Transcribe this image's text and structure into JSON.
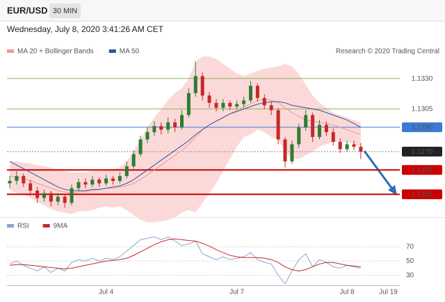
{
  "header": {
    "symbol": "EUR/USD",
    "interval": "30 MIN",
    "timestamp": "Wednesday, July 8, 2020 3:41:26 AM CET"
  },
  "chart_data": [
    {
      "type": "candlestick",
      "source": "Research © 2020 Trading Central",
      "categories": [
        null,
        null,
        null,
        null,
        null,
        null,
        null,
        null,
        null,
        null,
        null,
        null,
        null,
        null,
        "Jul 4",
        null,
        null,
        null,
        null,
        null,
        null,
        null,
        null,
        null,
        null,
        null,
        null,
        null,
        null,
        null,
        null,
        null,
        null,
        "Jul 7",
        null,
        null,
        null,
        null,
        null,
        null,
        null,
        null,
        null,
        null,
        null,
        null,
        null,
        null,
        null,
        "Jul 8",
        null,
        null,
        null,
        null,
        null,
        "Jul 19"
      ],
      "open": [
        1.1244,
        1.1246,
        1.125,
        1.1244,
        1.1238,
        1.1232,
        1.1236,
        1.1229,
        1.1233,
        1.1228,
        1.124,
        1.1245,
        1.1243,
        1.1247,
        1.1244,
        1.1248,
        1.1246,
        1.125,
        1.1258,
        1.1268,
        1.128,
        1.1286,
        1.1291,
        1.1288,
        1.1294,
        1.129,
        1.13,
        1.1318,
        1.1332,
        1.1316,
        1.131,
        1.1306,
        1.131,
        1.1307,
        1.1309,
        1.1312,
        1.1324,
        1.1314,
        1.1308,
        1.1304,
        1.128,
        1.1262,
        1.1276,
        1.129,
        1.13,
        1.1282,
        1.1292,
        1.1286,
        1.1278,
        1.1272,
        1.1276,
        1.1274,
        null,
        null,
        null,
        null
      ],
      "high": [
        1.125,
        1.1254,
        1.1252,
        1.1247,
        1.1241,
        1.1239,
        1.1238,
        1.1236,
        1.1235,
        1.1243,
        1.1248,
        1.1248,
        1.125,
        1.1249,
        1.1251,
        1.125,
        1.1253,
        1.1262,
        1.1271,
        1.1283,
        1.129,
        1.1295,
        1.1294,
        1.1298,
        1.1297,
        1.1304,
        1.1322,
        1.1344,
        1.1335,
        1.1319,
        1.1313,
        1.1313,
        1.1312,
        1.1312,
        1.1315,
        1.1328,
        1.1326,
        1.1317,
        1.1311,
        1.1306,
        1.1282,
        1.1279,
        1.1293,
        1.1304,
        1.1302,
        1.1296,
        1.1295,
        1.1289,
        1.1281,
        1.1279,
        1.1279,
        1.1277,
        null,
        null,
        null,
        null
      ],
      "low": [
        1.124,
        1.1243,
        1.1241,
        1.1234,
        1.1228,
        1.1229,
        1.1225,
        1.1226,
        1.1224,
        1.1226,
        1.1238,
        1.124,
        1.1241,
        1.1241,
        1.1242,
        1.1243,
        1.1244,
        1.1248,
        1.1256,
        1.1266,
        1.1277,
        1.1283,
        1.1284,
        1.1285,
        1.1286,
        1.1288,
        1.1298,
        1.1315,
        1.1312,
        1.1306,
        1.1303,
        1.1303,
        1.1304,
        1.1305,
        1.1306,
        1.131,
        1.1311,
        1.1305,
        1.13,
        1.1276,
        1.1257,
        1.126,
        1.1273,
        1.1287,
        1.1278,
        1.128,
        1.1283,
        1.1275,
        1.1269,
        1.127,
        1.1271,
        1.1264,
        null,
        null,
        null,
        null
      ],
      "close": [
        1.1246,
        1.125,
        1.1244,
        1.1238,
        1.1232,
        1.1236,
        1.1229,
        1.1233,
        1.1228,
        1.124,
        1.1245,
        1.1243,
        1.1247,
        1.1244,
        1.1248,
        1.1246,
        1.125,
        1.1258,
        1.1268,
        1.128,
        1.1286,
        1.1291,
        1.1288,
        1.1294,
        1.129,
        1.13,
        1.1318,
        1.1332,
        1.1316,
        1.131,
        1.1306,
        1.131,
        1.1307,
        1.1309,
        1.1312,
        1.1324,
        1.1314,
        1.1308,
        1.1304,
        1.128,
        1.1262,
        1.1276,
        1.129,
        1.13,
        1.1282,
        1.1292,
        1.1286,
        1.1278,
        1.1272,
        1.1276,
        1.1274,
        1.127,
        null,
        null,
        null,
        null
      ],
      "up_color": "#2e7d32",
      "down_color": "#c62828",
      "series": [
        {
          "name": "MA 20 + Bollinger Bands",
          "color": "#e89a9a",
          "band_color": "#fbd9d9",
          "values": [
            1.125,
            1.1249,
            1.1248,
            1.1246,
            1.1244,
            1.1242,
            1.124,
            1.1238,
            1.1237,
            1.1236,
            1.1237,
            1.1237,
            1.1238,
            1.1239,
            1.124,
            1.124,
            1.1241,
            1.1242,
            1.1244,
            1.1247,
            1.1251,
            1.1255,
            1.1259,
            1.1263,
            1.1267,
            1.1271,
            1.1276,
            1.1282,
            1.1288,
            1.1292,
            1.1295,
            1.1298,
            1.1301,
            1.1304,
            1.1307,
            1.1309,
            1.1312,
            1.1313,
            1.1312,
            1.131,
            1.1306,
            1.1302,
            1.1299,
            1.1296,
            1.1295,
            1.1294,
            1.1293,
            1.1292,
            1.129,
            1.1288,
            1.1286,
            1.1284,
            null,
            null,
            null,
            null
          ],
          "upper": [
            1.1262,
            1.1262,
            1.1261,
            1.126,
            1.1259,
            1.1258,
            1.1257,
            1.1255,
            1.1254,
            1.1253,
            1.1253,
            1.1253,
            1.1254,
            1.1254,
            1.1255,
            1.1256,
            1.1257,
            1.1262,
            1.127,
            1.128,
            1.129,
            1.1298,
            1.1305,
            1.1312,
            1.1318,
            1.1322,
            1.133,
            1.1344,
            1.1348,
            1.1348,
            1.1346,
            1.1342,
            1.1338,
            1.1334,
            1.1332,
            1.1334,
            1.1336,
            1.1338,
            1.1339,
            1.134,
            1.1342,
            1.134,
            1.1334,
            1.1325,
            1.1316,
            1.131,
            1.1306,
            1.1302,
            1.13,
            1.1298,
            1.1296,
            1.1294,
            null,
            null,
            null,
            null
          ],
          "lower": [
            1.1238,
            1.1236,
            1.1235,
            1.1232,
            1.1229,
            1.1226,
            1.1223,
            1.1221,
            1.122,
            1.1219,
            1.1221,
            1.1221,
            1.1222,
            1.1224,
            1.1225,
            1.1224,
            1.1225,
            1.1222,
            1.1218,
            1.1214,
            1.1212,
            1.1212,
            1.1213,
            1.1214,
            1.1216,
            1.122,
            1.1222,
            1.122,
            1.1228,
            1.1236,
            1.1244,
            1.1254,
            1.1264,
            1.1274,
            1.1282,
            1.1284,
            1.1288,
            1.1286,
            1.1282,
            1.128,
            1.127,
            1.1264,
            1.1264,
            1.1267,
            1.127,
            1.1274,
            1.1276,
            1.1278,
            1.1278,
            1.1278,
            1.1276,
            1.1274,
            null,
            null,
            null,
            null
          ]
        },
        {
          "name": "MA 50",
          "color": "#2f5597",
          "values": [
            1.1262,
            1.1259,
            1.1256,
            1.1253,
            1.125,
            1.1247,
            1.1244,
            1.1241,
            1.1239,
            1.1238,
            1.1238,
            1.1238,
            1.1239,
            1.1239,
            1.124,
            1.1241,
            1.1242,
            1.1244,
            1.1247,
            1.1251,
            1.1255,
            1.1259,
            1.1263,
            1.1267,
            1.1271,
            1.1275,
            1.1279,
            1.1284,
            1.1288,
            1.1292,
            1.1295,
            1.1298,
            1.1301,
            1.1303,
            1.1305,
            1.1307,
            1.1309,
            1.131,
            1.1311,
            1.1311,
            1.131,
            1.1308,
            1.1307,
            1.1306,
            1.1305,
            1.1304,
            1.1302,
            1.13,
            1.1298,
            1.1296,
            1.1293,
            1.129,
            null,
            null,
            null,
            null
          ]
        }
      ],
      "ylim": [
        1.1222,
        1.1359
      ],
      "levels": [
        {
          "value": 1.133,
          "label": "1.1330",
          "color": "#9aab5a",
          "text_color": "#6b8e00",
          "filled": false,
          "width": 1,
          "dashed": false
        },
        {
          "value": 1.1305,
          "label": "1.1305",
          "color": "#9aab5a",
          "text_color": "#6b8e00",
          "filled": false,
          "width": 1,
          "dashed": false
        },
        {
          "value": 1.129,
          "label": "1.1290",
          "color": "#3b78d8",
          "text_color": "#ffffff",
          "filled": true,
          "width": 1,
          "dashed": false
        },
        {
          "value": 1.127,
          "label": "1.1270",
          "color": "#888888",
          "bg": "#222222",
          "text_color": "#ffffff",
          "filled": true,
          "width": 1,
          "dashed": true
        },
        {
          "value": 1.1255,
          "label": "1.1255",
          "color": "#cc0000",
          "text_color": "#ffffff",
          "filled": true,
          "width": 2,
          "dashed": false
        },
        {
          "value": 1.1235,
          "label": "1.1235",
          "color": "#cc0000",
          "text_color": "#ffffff",
          "filled": true,
          "width": 2,
          "dashed": false
        }
      ]
    },
    {
      "type": "line",
      "series": [
        {
          "name": "RSI",
          "color": "#8aa4d0",
          "values": [
            46,
            50,
            44,
            40,
            36,
            42,
            34,
            40,
            36,
            48,
            52,
            50,
            54,
            50,
            54,
            52,
            56,
            64,
            72,
            80,
            82,
            84,
            80,
            84,
            78,
            72,
            74,
            78,
            60,
            56,
            52,
            56,
            52,
            54,
            56,
            62,
            52,
            48,
            46,
            30,
            18,
            36,
            52,
            60,
            42,
            52,
            48,
            42,
            40,
            44,
            42,
            40,
            null,
            null,
            null,
            null
          ]
        },
        {
          "name": "9MA",
          "color": "#c62828",
          "values": [
            44,
            45,
            45,
            44,
            43,
            42,
            41,
            40,
            39,
            40,
            42,
            44,
            46,
            48,
            50,
            51,
            52,
            54,
            58,
            63,
            68,
            73,
            77,
            80,
            81,
            80,
            79,
            78,
            75,
            71,
            66,
            62,
            58,
            56,
            55,
            55,
            55,
            54,
            52,
            48,
            42,
            38,
            36,
            38,
            42,
            46,
            48,
            48,
            46,
            44,
            43,
            42,
            null,
            null,
            null,
            null
          ]
        }
      ],
      "ylim": [
        15,
        100
      ],
      "yticks": [
        70,
        50,
        30
      ],
      "grid": true
    }
  ]
}
